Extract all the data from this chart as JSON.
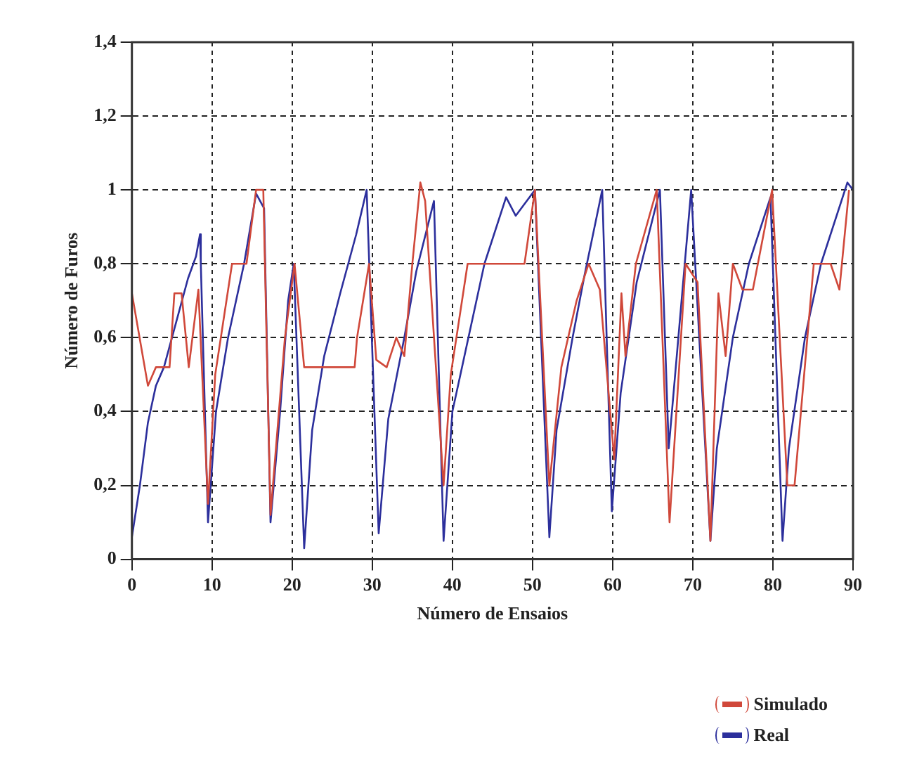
{
  "chart_data": {
    "type": "line",
    "xlabel": "Número de Ensaios",
    "ylabel": "Número de Furos",
    "xlim": [
      0,
      90
    ],
    "xticks": [
      0,
      10,
      20,
      30,
      40,
      50,
      60,
      70,
      80,
      90
    ],
    "ylim": [
      0,
      1.4
    ],
    "yticks": [
      0,
      {
        "value": 0.2,
        "label": "0,2"
      },
      {
        "value": 0.4,
        "label": "0,4"
      },
      {
        "value": 0.6,
        "label": "0,6"
      },
      {
        "value": 0.8,
        "label": "0,8"
      },
      1,
      {
        "value": 1.2,
        "label": "1,2"
      },
      {
        "value": 1.4,
        "label": "1,4"
      }
    ],
    "grid": true,
    "legend": "bottom right",
    "marker": "none",
    "line_style": "solid",
    "series": [
      {
        "name": "Simulado",
        "color": "#d0483a",
        "x": [
          0,
          2,
          3,
          4.7,
          5.3,
          6.2,
          7.1,
          8.3,
          9.5,
          10.4,
          12.5,
          14.3,
          15.5,
          16.4,
          17.3,
          19.1,
          20.3,
          21.5,
          27.8,
          28.1,
          29.6,
          30.5,
          31.8,
          33,
          34,
          35,
          36,
          36.6,
          38.9,
          39.8,
          41.9,
          49,
          50.3,
          52.1,
          53.6,
          55.5,
          57,
          58.4,
          60.2,
          61.1,
          61.6,
          62.9,
          65.5,
          67.1,
          69.1,
          70.6,
          72.2,
          73.2,
          74.1,
          75,
          76.2,
          77.5,
          79.9,
          81.8,
          82.7,
          85.1,
          87.2,
          88.3,
          89.5
        ],
        "values": [
          0.72,
          0.47,
          0.52,
          0.52,
          0.72,
          0.72,
          0.52,
          0.73,
          0.15,
          0.5,
          0.8,
          0.8,
          1,
          1,
          0.12,
          0.6,
          0.8,
          0.52,
          0.52,
          0.6,
          0.8,
          0.54,
          0.52,
          0.6,
          0.55,
          0.8,
          1.02,
          0.97,
          0.2,
          0.5,
          0.8,
          0.8,
          1,
          0.2,
          0.52,
          0.7,
          0.8,
          0.73,
          0.27,
          0.72,
          0.55,
          0.8,
          1,
          0.1,
          0.8,
          0.75,
          0.05,
          0.72,
          0.55,
          0.8,
          0.73,
          0.73,
          1,
          0.2,
          0.2,
          0.8,
          0.8,
          0.73,
          1
        ]
      },
      {
        "name": "Real",
        "color": "#2c2f9c",
        "x": [
          0,
          1,
          2,
          3,
          4,
          5,
          6,
          7,
          8,
          8.5,
          8.6,
          9.5,
          10.5,
          12,
          14,
          15.5,
          16.5,
          17.3,
          18.5,
          19.5,
          20.2,
          21.5,
          22.5,
          24,
          26,
          28,
          29.3,
          30.8,
          32,
          34,
          35.5,
          37.7,
          38.9,
          40,
          42,
          44,
          46.7,
          47.9,
          50.3,
          52.1,
          53,
          55,
          56.5,
          58.7,
          59.9,
          61,
          63,
          65.9,
          67,
          68,
          69.8,
          72.2,
          73,
          75,
          77,
          79.7,
          81.2,
          82,
          84,
          86,
          89.3,
          90
        ],
        "values": [
          0.06,
          0.2,
          0.37,
          0.47,
          0.52,
          0.6,
          0.68,
          0.76,
          0.82,
          0.88,
          0.8,
          0.1,
          0.4,
          0.6,
          0.8,
          0.99,
          0.95,
          0.1,
          0.4,
          0.7,
          0.8,
          0.03,
          0.35,
          0.55,
          0.72,
          0.88,
          1,
          0.07,
          0.38,
          0.6,
          0.78,
          0.97,
          0.05,
          0.4,
          0.6,
          0.8,
          0.98,
          0.93,
          1,
          0.06,
          0.35,
          0.6,
          0.77,
          1,
          0.13,
          0.45,
          0.75,
          1,
          0.3,
          0.55,
          1,
          0.05,
          0.3,
          0.6,
          0.8,
          0.98,
          0.05,
          0.3,
          0.6,
          0.8,
          1.02,
          1
        ]
      }
    ]
  }
}
